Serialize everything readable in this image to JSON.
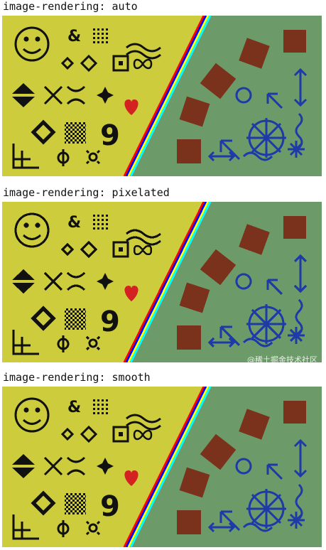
{
  "sections": [
    {
      "caption": "image-rendering: auto",
      "mode": "auto"
    },
    {
      "caption": "image-rendering: pixelated",
      "mode": "pixelated"
    },
    {
      "caption": "image-rendering: smooth",
      "mode": "smooth"
    }
  ],
  "watermark": "@稀土掘金技术社区",
  "colors": {
    "left_panel": "#cccc3c",
    "right_panel": "#6c9a68",
    "ink": "#111111",
    "heart": "#d42222",
    "brown": "#7a321c",
    "blue_glyph": "#1e3aa8",
    "stripe_colors": [
      "#ff0000",
      "#0000ff",
      "#ffff00",
      "#00ffff"
    ]
  },
  "icons": [
    "smiley-icon",
    "ampersand-icon",
    "dot-grid-icon",
    "wave-icon",
    "diamond-icon",
    "dotted-square-icon",
    "infinity-icon",
    "up-down-triangle-icon",
    "x-icon",
    "four-point-star-icon",
    "heart-icon",
    "large-diamond-icon",
    "checker-square-icon",
    "nine-glyph-icon",
    "axes-icon",
    "phi-icon",
    "sun-icon",
    "brown-square-icon",
    "circle-icon",
    "arrow-icon",
    "compass-icon",
    "up-down-arrow-icon",
    "left-right-arrow-icon",
    "tilde-icon",
    "asterisk-icon"
  ]
}
